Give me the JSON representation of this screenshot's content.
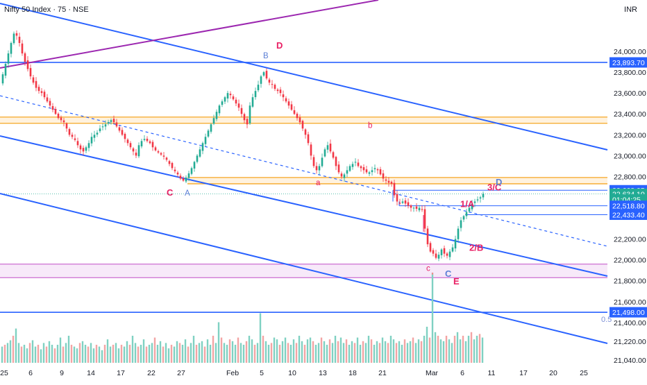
{
  "header": {
    "title": "Nifty 50 Index · 75 · NSE",
    "currency": "INR"
  },
  "chart_data": {
    "type": "candlestick",
    "title": "Nifty 50 Index · 75 · NSE",
    "currency": "INR",
    "ylim": [
      21000,
      24600
    ],
    "y_ticks": [
      "24,000.00",
      "23,800.00",
      "23,600.00",
      "23,400.00",
      "23,200.00",
      "23,000.00",
      "22,800.00",
      "22,200.00",
      "22,000.00",
      "21,800.00",
      "21,600.00",
      "21,400.00",
      "21,220.00",
      "21,040.00"
    ],
    "x_ticks": [
      "25",
      "6",
      "9",
      "14",
      "17",
      "22",
      "27",
      "Feb",
      "5",
      "10",
      "13",
      "18",
      "21",
      "Mar",
      "6",
      "11",
      "17",
      "20",
      "25"
    ],
    "price_tags": [
      {
        "label": "23,893.70",
        "value": 23893.7,
        "color": "#2962ff"
      },
      {
        "label": "22,668.05",
        "value": 22668.05,
        "color": "#2962ff"
      },
      {
        "label": "22,634.10",
        "value": 22634.1,
        "color": "#22ab94"
      },
      {
        "label": "01:04:25",
        "value": 22580,
        "color": "#22ab94"
      },
      {
        "label": "22,518.80",
        "value": 22518.8,
        "color": "#2962ff"
      },
      {
        "label": "22,433.40",
        "value": 22433.4,
        "color": "#2962ff"
      },
      {
        "label": "21,498.00",
        "value": 21498,
        "color": "#2962ff"
      }
    ],
    "price_path": [
      [
        0,
        23680
      ],
      [
        4,
        23780
      ],
      [
        8,
        23880
      ],
      [
        12,
        23980
      ],
      [
        16,
        24080
      ],
      [
        20,
        24170
      ],
      [
        24,
        24150
      ],
      [
        28,
        24080
      ],
      [
        32,
        23980
      ],
      [
        36,
        23900
      ],
      [
        40,
        23830
      ],
      [
        44,
        23760
      ],
      [
        48,
        23700
      ],
      [
        52,
        23650
      ],
      [
        56,
        23620
      ],
      [
        60,
        23600
      ],
      [
        64,
        23560
      ],
      [
        68,
        23520
      ],
      [
        72,
        23480
      ],
      [
        76,
        23440
      ],
      [
        80,
        23400
      ],
      [
        84,
        23360
      ],
      [
        88,
        23340
      ],
      [
        92,
        23320
      ],
      [
        96,
        23260
      ],
      [
        100,
        23200
      ],
      [
        104,
        23180
      ],
      [
        108,
        23150
      ],
      [
        112,
        23100
      ],
      [
        116,
        23060
      ],
      [
        120,
        23040
      ],
      [
        124,
        23080
      ],
      [
        128,
        23120
      ],
      [
        132,
        23180
      ],
      [
        136,
        23200
      ],
      [
        140,
        23220
      ],
      [
        144,
        23260
      ],
      [
        148,
        23280
      ],
      [
        152,
        23300
      ],
      [
        156,
        23320
      ],
      [
        160,
        23340
      ],
      [
        164,
        23320
      ],
      [
        168,
        23280
      ],
      [
        172,
        23240
      ],
      [
        176,
        23200
      ],
      [
        180,
        23160
      ],
      [
        184,
        23120
      ],
      [
        188,
        23080
      ],
      [
        192,
        23040
      ],
      [
        196,
        23000
      ],
      [
        200,
        23100
      ],
      [
        204,
        23140
      ],
      [
        208,
        23160
      ],
      [
        212,
        23140
      ],
      [
        216,
        23120
      ],
      [
        220,
        23080
      ],
      [
        224,
        23050
      ],
      [
        228,
        23030
      ],
      [
        232,
        23010
      ],
      [
        236,
        22990
      ],
      [
        240,
        22960
      ],
      [
        244,
        22920
      ],
      [
        248,
        22880
      ],
      [
        252,
        22850
      ],
      [
        256,
        22820
      ],
      [
        260,
        22780
      ],
      [
        264,
        22760
      ],
      [
        268,
        22790
      ],
      [
        272,
        22830
      ],
      [
        276,
        22880
      ],
      [
        280,
        22940
      ],
      [
        284,
        23000
      ],
      [
        288,
        23060
      ],
      [
        292,
        23120
      ],
      [
        296,
        23180
      ],
      [
        300,
        23240
      ],
      [
        304,
        23300
      ],
      [
        308,
        23360
      ],
      [
        312,
        23420
      ],
      [
        316,
        23480
      ],
      [
        320,
        23520
      ],
      [
        324,
        23560
      ],
      [
        328,
        23600
      ],
      [
        332,
        23580
      ],
      [
        336,
        23540
      ],
      [
        340,
        23500
      ],
      [
        344,
        23460
      ],
      [
        348,
        23400
      ],
      [
        352,
        23340
      ],
      [
        356,
        23300
      ],
      [
        360,
        23480
      ],
      [
        364,
        23560
      ],
      [
        368,
        23620
      ],
      [
        372,
        23680
      ],
      [
        376,
        23760
      ],
      [
        380,
        23800
      ],
      [
        384,
        23740
      ],
      [
        388,
        23700
      ],
      [
        392,
        23680
      ],
      [
        396,
        23640
      ],
      [
        400,
        23620
      ],
      [
        404,
        23600
      ],
      [
        408,
        23560
      ],
      [
        412,
        23520
      ],
      [
        416,
        23480
      ],
      [
        420,
        23440
      ],
      [
        424,
        23400
      ],
      [
        428,
        23360
      ],
      [
        432,
        23320
      ],
      [
        436,
        23260
      ],
      [
        440,
        23200
      ],
      [
        444,
        23120
      ],
      [
        448,
        23000
      ],
      [
        452,
        22900
      ],
      [
        456,
        22860
      ],
      [
        460,
        22900
      ],
      [
        464,
        22980
      ],
      [
        468,
        23060
      ],
      [
        472,
        23100
      ],
      [
        476,
        23040
      ],
      [
        480,
        22980
      ],
      [
        484,
        22900
      ],
      [
        488,
        22840
      ],
      [
        492,
        22800
      ],
      [
        496,
        22820
      ],
      [
        500,
        22860
      ],
      [
        504,
        22900
      ],
      [
        508,
        22920
      ],
      [
        512,
        22940
      ],
      [
        516,
        22900
      ],
      [
        520,
        22880
      ],
      [
        524,
        22860
      ],
      [
        528,
        22840
      ],
      [
        532,
        22840
      ],
      [
        536,
        22860
      ],
      [
        540,
        22880
      ],
      [
        544,
        22860
      ],
      [
        548,
        22820
      ],
      [
        552,
        22780
      ],
      [
        556,
        22760
      ],
      [
        560,
        22740
      ],
      [
        564,
        22730
      ],
      [
        568,
        22620
      ],
      [
        572,
        22560
      ],
      [
        576,
        22540
      ],
      [
        580,
        22560
      ],
      [
        584,
        22540
      ],
      [
        588,
        22520
      ],
      [
        592,
        22500
      ],
      [
        596,
        22500
      ],
      [
        600,
        22490
      ],
      [
        604,
        22500
      ],
      [
        608,
        22480
      ],
      [
        612,
        22300
      ],
      [
        616,
        22150
      ],
      [
        620,
        22080
      ],
      [
        624,
        22060
      ],
      [
        628,
        22020
      ],
      [
        632,
        22050
      ],
      [
        636,
        22100
      ],
      [
        640,
        22060
      ],
      [
        644,
        22040
      ],
      [
        648,
        22080
      ],
      [
        652,
        22120
      ],
      [
        656,
        22200
      ],
      [
        660,
        22300
      ],
      [
        664,
        22380
      ],
      [
        668,
        22420
      ],
      [
        672,
        22460
      ],
      [
        676,
        22500
      ],
      [
        680,
        22540
      ],
      [
        684,
        22560
      ],
      [
        688,
        22580
      ],
      [
        692,
        22600
      ],
      [
        696,
        22634
      ]
    ],
    "volume_range": [
      0,
      1
    ],
    "volume": [
      [
        3,
        0.18
      ],
      [
        7,
        0.2
      ],
      [
        11,
        0.22
      ],
      [
        15,
        0.25
      ],
      [
        19,
        0.3
      ],
      [
        23,
        0.38
      ],
      [
        27,
        0.22
      ],
      [
        31,
        0.18
      ],
      [
        35,
        0.2
      ],
      [
        39,
        0.16
      ],
      [
        43,
        0.22
      ],
      [
        47,
        0.25
      ],
      [
        51,
        0.18
      ],
      [
        55,
        0.2
      ],
      [
        59,
        0.15
      ],
      [
        63,
        0.22
      ],
      [
        67,
        0.18
      ],
      [
        71,
        0.24
      ],
      [
        75,
        0.2
      ],
      [
        79,
        0.16
      ],
      [
        83,
        0.2
      ],
      [
        87,
        0.28
      ],
      [
        91,
        0.18
      ],
      [
        95,
        0.22
      ],
      [
        99,
        0.3
      ],
      [
        103,
        0.2
      ],
      [
        107,
        0.18
      ],
      [
        111,
        0.16
      ],
      [
        115,
        0.22
      ],
      [
        119,
        0.24
      ],
      [
        123,
        0.2
      ],
      [
        127,
        0.18
      ],
      [
        131,
        0.22
      ],
      [
        135,
        0.16
      ],
      [
        139,
        0.2
      ],
      [
        143,
        0.18
      ],
      [
        147,
        0.14
      ],
      [
        151,
        0.2
      ],
      [
        155,
        0.26
      ],
      [
        159,
        0.18
      ],
      [
        163,
        0.2
      ],
      [
        167,
        0.22
      ],
      [
        171,
        0.16
      ],
      [
        175,
        0.2
      ],
      [
        179,
        0.18
      ],
      [
        183,
        0.24
      ],
      [
        187,
        0.2
      ],
      [
        191,
        0.3
      ],
      [
        195,
        0.22
      ],
      [
        199,
        0.18
      ],
      [
        203,
        0.2
      ],
      [
        207,
        0.26
      ],
      [
        211,
        0.18
      ],
      [
        215,
        0.2
      ],
      [
        219,
        0.22
      ],
      [
        223,
        0.28
      ],
      [
        227,
        0.2
      ],
      [
        231,
        0.24
      ],
      [
        235,
        0.18
      ],
      [
        239,
        0.22
      ],
      [
        243,
        0.16
      ],
      [
        247,
        0.2
      ],
      [
        251,
        0.18
      ],
      [
        255,
        0.24
      ],
      [
        259,
        0.22
      ],
      [
        263,
        0.2
      ],
      [
        267,
        0.26
      ],
      [
        271,
        0.18
      ],
      [
        275,
        0.22
      ],
      [
        279,
        0.3
      ],
      [
        283,
        0.2
      ],
      [
        287,
        0.22
      ],
      [
        291,
        0.24
      ],
      [
        295,
        0.18
      ],
      [
        299,
        0.26
      ],
      [
        303,
        0.2
      ],
      [
        307,
        0.3
      ],
      [
        311,
        0.22
      ],
      [
        315,
        0.45
      ],
      [
        319,
        0.28
      ],
      [
        323,
        0.22
      ],
      [
        327,
        0.2
      ],
      [
        331,
        0.26
      ],
      [
        335,
        0.24
      ],
      [
        339,
        0.2
      ],
      [
        343,
        0.28
      ],
      [
        347,
        0.22
      ],
      [
        351,
        0.2
      ],
      [
        355,
        0.24
      ],
      [
        359,
        0.3
      ],
      [
        363,
        0.26
      ],
      [
        367,
        0.2
      ],
      [
        371,
        0.22
      ],
      [
        375,
        0.55
      ],
      [
        379,
        0.3
      ],
      [
        383,
        0.24
      ],
      [
        387,
        0.2
      ],
      [
        391,
        0.22
      ],
      [
        395,
        0.28
      ],
      [
        399,
        0.26
      ],
      [
        403,
        0.2
      ],
      [
        407,
        0.24
      ],
      [
        411,
        0.28
      ],
      [
        415,
        0.22
      ],
      [
        419,
        0.2
      ],
      [
        423,
        0.26
      ],
      [
        427,
        0.22
      ],
      [
        431,
        0.3
      ],
      [
        435,
        0.24
      ],
      [
        439,
        0.2
      ],
      [
        443,
        0.26
      ],
      [
        447,
        0.28
      ],
      [
        451,
        0.24
      ],
      [
        455,
        0.2
      ],
      [
        459,
        0.22
      ],
      [
        463,
        0.28
      ],
      [
        467,
        0.24
      ],
      [
        471,
        0.2
      ],
      [
        475,
        0.26
      ],
      [
        479,
        0.22
      ],
      [
        483,
        0.3
      ],
      [
        487,
        0.24
      ],
      [
        491,
        0.28
      ],
      [
        495,
        0.22
      ],
      [
        499,
        0.26
      ],
      [
        503,
        0.2
      ],
      [
        507,
        0.24
      ],
      [
        511,
        0.22
      ],
      [
        515,
        0.28
      ],
      [
        519,
        0.2
      ],
      [
        523,
        0.24
      ],
      [
        527,
        0.22
      ],
      [
        531,
        0.3
      ],
      [
        535,
        0.26
      ],
      [
        539,
        0.2
      ],
      [
        543,
        0.24
      ],
      [
        547,
        0.22
      ],
      [
        551,
        0.28
      ],
      [
        555,
        0.24
      ],
      [
        559,
        0.22
      ],
      [
        563,
        0.3
      ],
      [
        567,
        0.26
      ],
      [
        571,
        0.22
      ],
      [
        575,
        0.24
      ],
      [
        579,
        0.2
      ],
      [
        583,
        0.26
      ],
      [
        587,
        0.22
      ],
      [
        591,
        0.24
      ],
      [
        595,
        0.28
      ],
      [
        599,
        0.22
      ],
      [
        603,
        0.26
      ],
      [
        607,
        0.24
      ],
      [
        611,
        0.3
      ],
      [
        615,
        0.4
      ],
      [
        619,
        0.28
      ],
      [
        623,
        1.0
      ],
      [
        627,
        0.34
      ],
      [
        631,
        0.3
      ],
      [
        635,
        0.26
      ],
      [
        639,
        0.24
      ],
      [
        643,
        0.3
      ],
      [
        647,
        0.26
      ],
      [
        651,
        0.22
      ],
      [
        655,
        0.3
      ],
      [
        659,
        0.34
      ],
      [
        663,
        0.26
      ],
      [
        667,
        0.3
      ],
      [
        671,
        0.24
      ],
      [
        675,
        0.3
      ],
      [
        679,
        0.34
      ],
      [
        683,
        0.26
      ],
      [
        687,
        0.3
      ],
      [
        691,
        0.32
      ],
      [
        695,
        0.28
      ]
    ],
    "annotations": [
      {
        "text": "C",
        "color": "#e91e63",
        "price": 22690
      },
      {
        "text": "A",
        "color": "#5b7fd6",
        "price": 22690
      },
      {
        "text": "B",
        "color": "#5b7fd6",
        "price": 23900
      },
      {
        "text": "D",
        "color": "#e91e63",
        "price": 24000
      },
      {
        "text": "a",
        "color": "#e91e63",
        "price": 22770
      },
      {
        "text": "b",
        "color": "#e91e63",
        "price": 23240
      },
      {
        "text": "c",
        "color": "#e91e63",
        "price": 21960
      },
      {
        "text": "C",
        "color": "#5b7fd6",
        "price": 21930
      },
      {
        "text": "E",
        "color": "#e91e63",
        "price": 21870
      },
      {
        "text": "1/A",
        "color": "#e91e63",
        "price": 22480
      },
      {
        "text": "2/B",
        "color": "#e91e63",
        "price": 22180
      },
      {
        "text": "3/C",
        "color": "#e91e63",
        "price": 22640
      },
      {
        "text": "D",
        "color": "#5b7fd6",
        "price": 22690
      },
      {
        "text": "0.5",
        "color": "#7b8fd6",
        "price": 21440
      }
    ]
  }
}
